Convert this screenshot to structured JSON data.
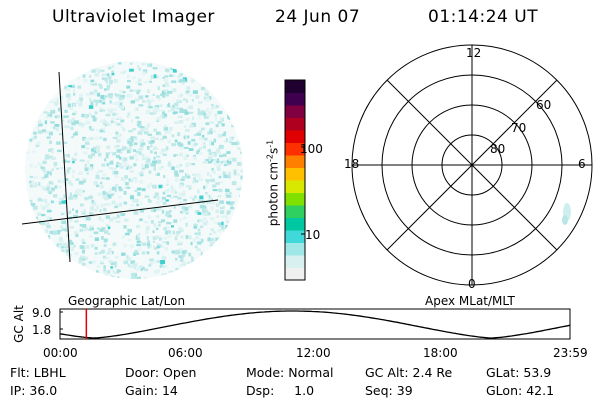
{
  "header": {
    "instrument": "Ultraviolet Imager",
    "date": "24 Jun 07",
    "time": "01:14:24 UT"
  },
  "left_panel": {
    "label": "Geographic Lat/Lon"
  },
  "colorbar": {
    "unit_label": "photon cm",
    "unit_exp1": "-2",
    "unit_mid": "s",
    "unit_exp2": "-1",
    "ticks": [
      {
        "label": "100",
        "value": 100
      },
      {
        "label": "10",
        "value": 10
      }
    ],
    "colors": [
      "#f0f0f0",
      "#d8f0f0",
      "#a0e8e8",
      "#40d8d8",
      "#00c8a0",
      "#30d060",
      "#80e000",
      "#d8e800",
      "#ffc000",
      "#ff8000",
      "#ff3000",
      "#e00000",
      "#b00020",
      "#800040",
      "#400050",
      "#200030"
    ]
  },
  "right_panel": {
    "label": "Apex MLat/MLT",
    "mlt_labels": {
      "top": "12",
      "left": "18",
      "right": "6",
      "bottom": "0"
    },
    "lat_labels": [
      {
        "label": "60",
        "value": 60
      },
      {
        "label": "70",
        "value": 70
      },
      {
        "label": "80",
        "value": 80
      }
    ]
  },
  "gc_plot": {
    "ylabel": "GC Alt",
    "yticks": [
      "9.0",
      "1.8"
    ],
    "xticks": [
      "00:00",
      "06:00",
      "12:00",
      "18:00",
      "23:59"
    ],
    "marker_time_hours": 1.24,
    "marker_color": "#e00000"
  },
  "info": {
    "row1": [
      {
        "key": "Flt:",
        "value": "LBHL"
      },
      {
        "key": "Door:",
        "value": "Open"
      },
      {
        "key": "Mode:",
        "value": "Normal"
      },
      {
        "key": "GC Alt:",
        "value": "2.4 Re"
      },
      {
        "key": "GLat:",
        "value": "53.9"
      }
    ],
    "row2": [
      {
        "key": "IP:",
        "value": "36.0"
      },
      {
        "key": "Gain:",
        "value": "14"
      },
      {
        "key": "Dsp:",
        "value": "1.0"
      },
      {
        "key": "Seq:",
        "value": "39"
      },
      {
        "key": "GLon:",
        "value": "42.1"
      }
    ]
  }
}
